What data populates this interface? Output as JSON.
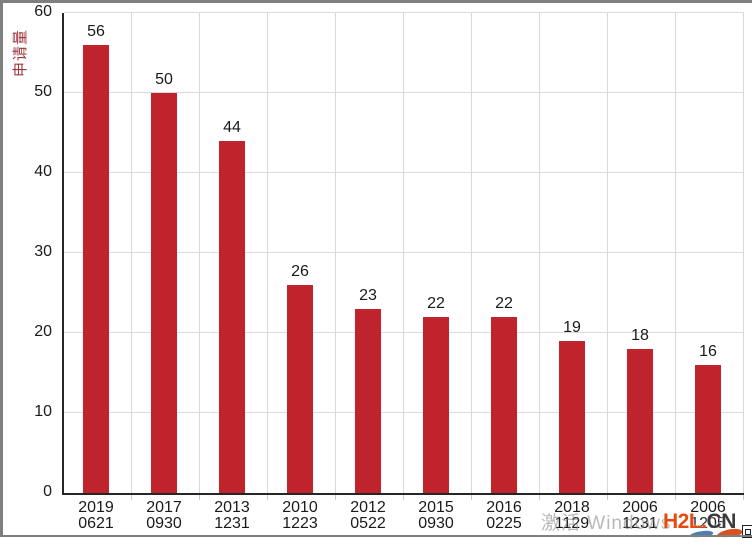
{
  "chart_data": {
    "type": "bar",
    "title": "",
    "ylabel": "申请量",
    "xlabel": "",
    "categories": [
      {
        "line1": "2019",
        "line2": "0621"
      },
      {
        "line1": "2017",
        "line2": "0930"
      },
      {
        "line1": "2013",
        "line2": "1231"
      },
      {
        "line1": "2010",
        "line2": "1223"
      },
      {
        "line1": "2012",
        "line2": "0522"
      },
      {
        "line1": "2015",
        "line2": "0930"
      },
      {
        "line1": "2016",
        "line2": "0225"
      },
      {
        "line1": "2018",
        "line2": "1129"
      },
      {
        "line1": "2006",
        "line2": "1231"
      },
      {
        "line1": "2006",
        "line2": "1205"
      }
    ],
    "values": [
      56,
      50,
      44,
      26,
      23,
      22,
      22,
      19,
      18,
      16
    ],
    "yticks": [
      0,
      10,
      20,
      30,
      40,
      50,
      60
    ],
    "ylim": [
      0,
      60
    ],
    "grid": "horizontal-and-vertical",
    "legend_position": "none",
    "data_labels_shown": true
  },
  "colors": {
    "bar": "#c0232c",
    "ylabel": "#9e3339",
    "gridline": "#d9d9d9",
    "axis": "#262626",
    "frame": "#7f7f7f",
    "watermark_gray": "#808080",
    "logo_primary": "#e8490f",
    "logo_secondary": "#3b3b3b"
  },
  "watermark": {
    "text": "激活 Windows"
  },
  "logo": {
    "part1": "H2L",
    "part2": ".",
    "part3": "CN"
  }
}
